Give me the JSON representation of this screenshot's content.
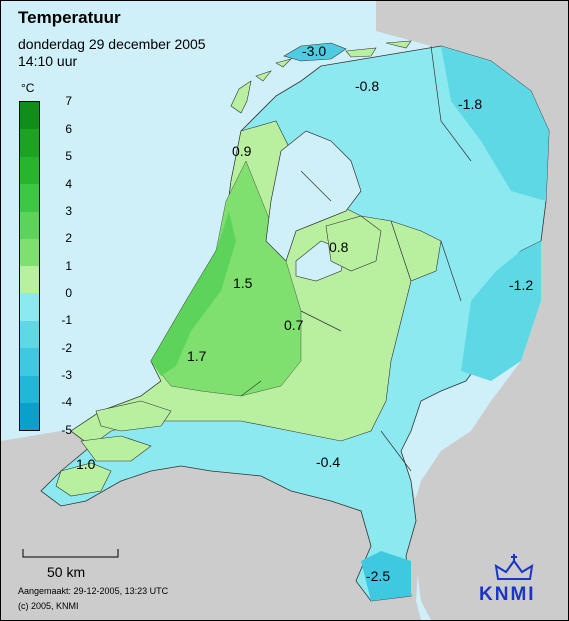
{
  "header": {
    "title": "Temperatuur",
    "date": "donderdag 29 december 2005",
    "time": "14:10 uur"
  },
  "legend": {
    "unit": "°C",
    "ticks": [
      "7",
      "6",
      "5",
      "4",
      "3",
      "2",
      "1",
      "0",
      "-1",
      "-2",
      "-3",
      "-4",
      "-5"
    ],
    "colors": {
      "warm_max": "#0f8f1a",
      "warm_mid": "#5cd45a",
      "warm_low": "#b8f0a0",
      "cold_low": "#8ce9f0",
      "cold_mid": "#3fc9e0",
      "cold_max": "#0aa0cc"
    }
  },
  "stations": [
    "-3.0",
    "-0.8",
    "-1.8",
    "0.9",
    "0.8",
    "-1.2",
    "1.5",
    "0.7",
    "1.7",
    "1.0",
    "-0.4",
    "-2.5"
  ],
  "scale": {
    "label": "50 km"
  },
  "footer": {
    "created": "Aangemaakt: 29-12-2005, 13:23 UTC",
    "copyright": "(c) 2005, KNMI"
  },
  "logo": {
    "text": "KNMI",
    "icon": "knmi-crown-icon"
  }
}
